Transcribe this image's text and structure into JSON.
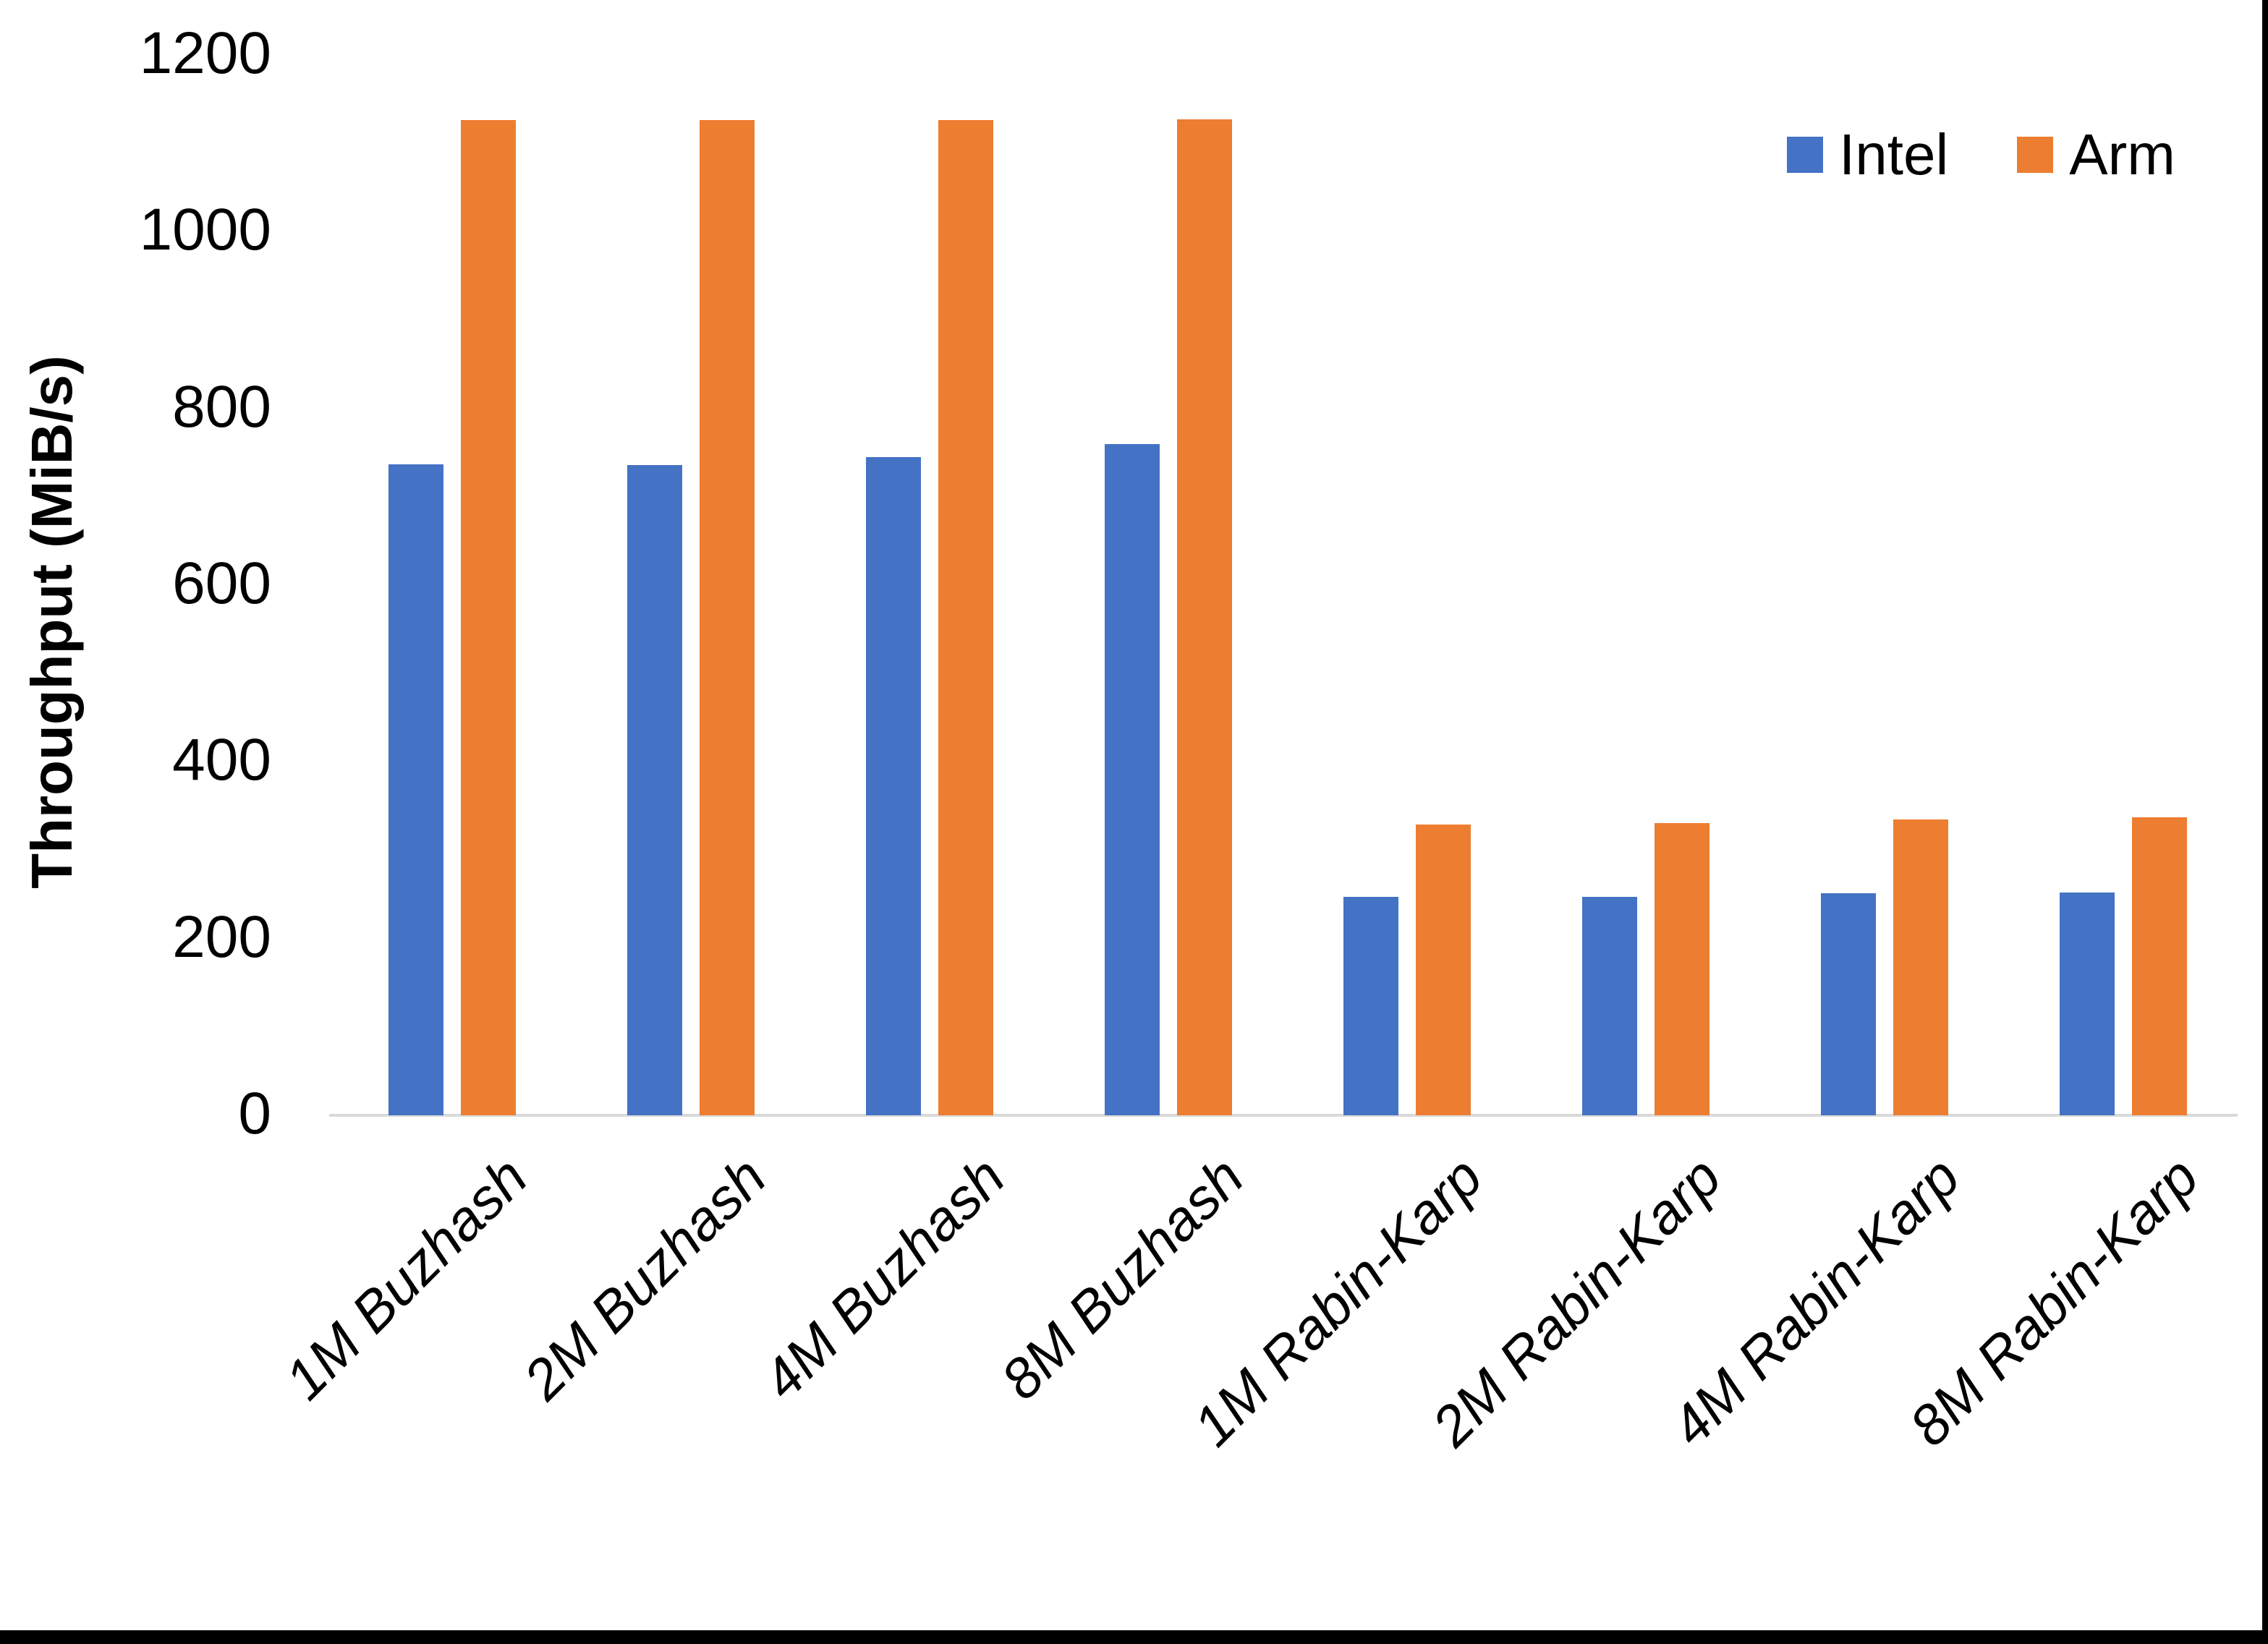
{
  "chart_data": {
    "type": "bar",
    "title": "",
    "categories": [
      "1M Buzhash",
      "2M Buzhash",
      "4M Buzhash",
      "8M Buzhash",
      "1M Rabin-Karp",
      "2M Rabin-Karp",
      "4M Rabin-Karp",
      "8M Rabin-Karp"
    ],
    "series": [
      {
        "name": "Intel",
        "color": "#4472C4",
        "values": [
          737,
          736,
          745,
          760,
          247,
          247,
          251,
          252
        ]
      },
      {
        "name": "Arm",
        "color": "#ED7D31",
        "values": [
          1126,
          1126,
          1126,
          1127,
          329,
          331,
          335,
          337
        ]
      }
    ],
    "xlabel": "",
    "ylabel": "Throughput (MiB/s)",
    "ylim": [
      0,
      1200
    ],
    "ytick_step": 200,
    "ytick_labels": [
      "0",
      "200",
      "400",
      "600",
      "800",
      "1000",
      "1200"
    ],
    "grid": false,
    "legend_position": "top-right"
  },
  "colors": {
    "axis_line": "#D9D9D9",
    "text": "#000000",
    "background": "#FFFFFF",
    "border": "#000000"
  }
}
